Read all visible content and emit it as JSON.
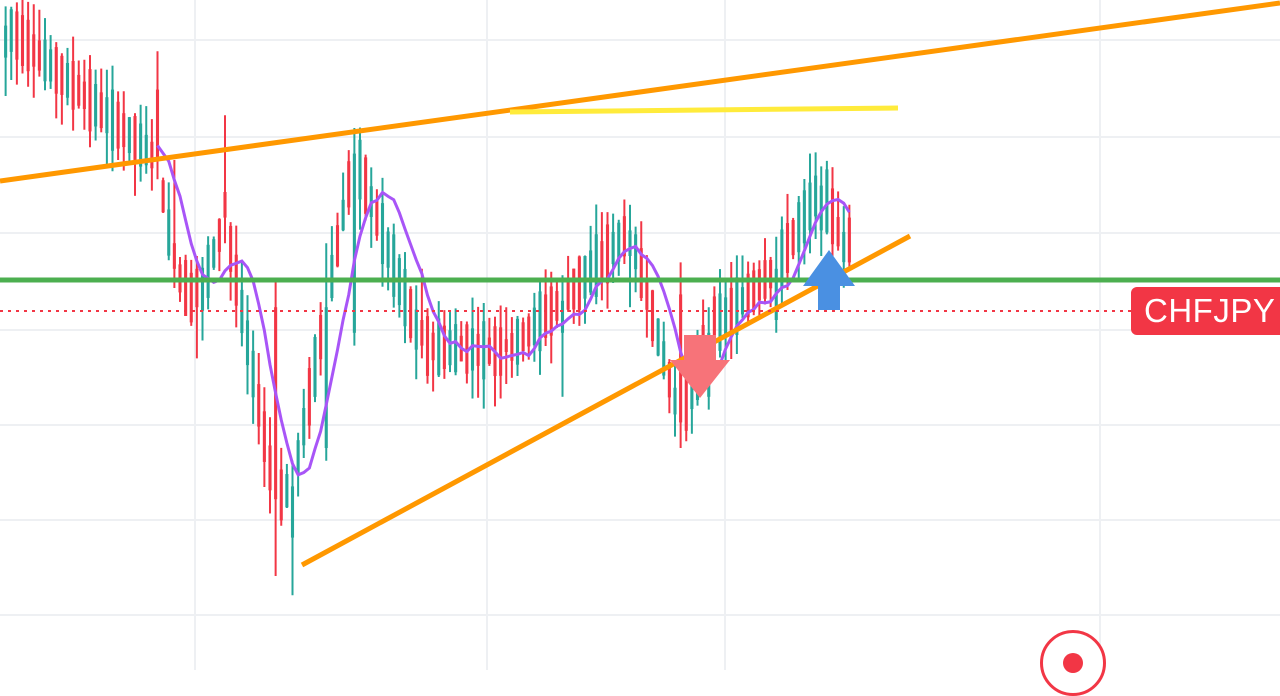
{
  "symbol": "CHFJPY",
  "colors": {
    "bull": "#26a69a",
    "bear": "#f23645",
    "ma": "#a855f7",
    "trend": "#ff9800",
    "support": "#4caf50",
    "highlight": "#ffeb3b",
    "grid": "#eef0f3",
    "price_line": "#f23645",
    "up_arrow": "#4a90e2",
    "down_arrow": "#f77379"
  },
  "icons": {
    "up_signal": "up-arrow-icon",
    "down_signal": "down-arrow-icon",
    "record": "record-icon"
  },
  "chart_data": {
    "type": "candlestick",
    "y_range": [
      0,
      100
    ],
    "x_range": [
      0,
      160
    ],
    "grid": "on",
    "current_price_label": "CHFJPY",
    "candles_sampled": [
      {
        "x": 1,
        "o": 91,
        "h": 99,
        "l": 85,
        "c": 96
      },
      {
        "x": 28,
        "o": 86,
        "h": 92,
        "l": 72,
        "c": 75
      },
      {
        "x": 31,
        "o": 62,
        "h": 75,
        "l": 55,
        "c": 58
      },
      {
        "x": 35,
        "o": 58,
        "h": 60,
        "l": 44,
        "c": 52
      },
      {
        "x": 40,
        "o": 70,
        "h": 82,
        "l": 62,
        "c": 66
      },
      {
        "x": 49,
        "o": 52,
        "h": 56,
        "l": 10,
        "c": 22
      },
      {
        "x": 52,
        "o": 16,
        "h": 28,
        "l": 7,
        "c": 24
      },
      {
        "x": 58,
        "o": 30,
        "h": 62,
        "l": 28,
        "c": 52
      },
      {
        "x": 63,
        "o": 48,
        "h": 80,
        "l": 46,
        "c": 76
      },
      {
        "x": 75,
        "o": 50,
        "h": 58,
        "l": 44,
        "c": 46
      },
      {
        "x": 90,
        "o": 47,
        "h": 52,
        "l": 40,
        "c": 45
      },
      {
        "x": 100,
        "o": 48,
        "h": 57,
        "l": 38,
        "c": 53
      },
      {
        "x": 112,
        "o": 60,
        "h": 68,
        "l": 52,
        "c": 64
      },
      {
        "x": 121,
        "o": 54,
        "h": 59,
        "l": 30,
        "c": 34
      },
      {
        "x": 126,
        "o": 38,
        "h": 52,
        "l": 36,
        "c": 48
      },
      {
        "x": 138,
        "o": 50,
        "h": 63,
        "l": 48,
        "c": 58
      },
      {
        "x": 146,
        "o": 64,
        "h": 74,
        "l": 60,
        "c": 71
      },
      {
        "x": 151,
        "o": 66,
        "h": 68,
        "l": 58,
        "c": 59
      }
    ]
  }
}
